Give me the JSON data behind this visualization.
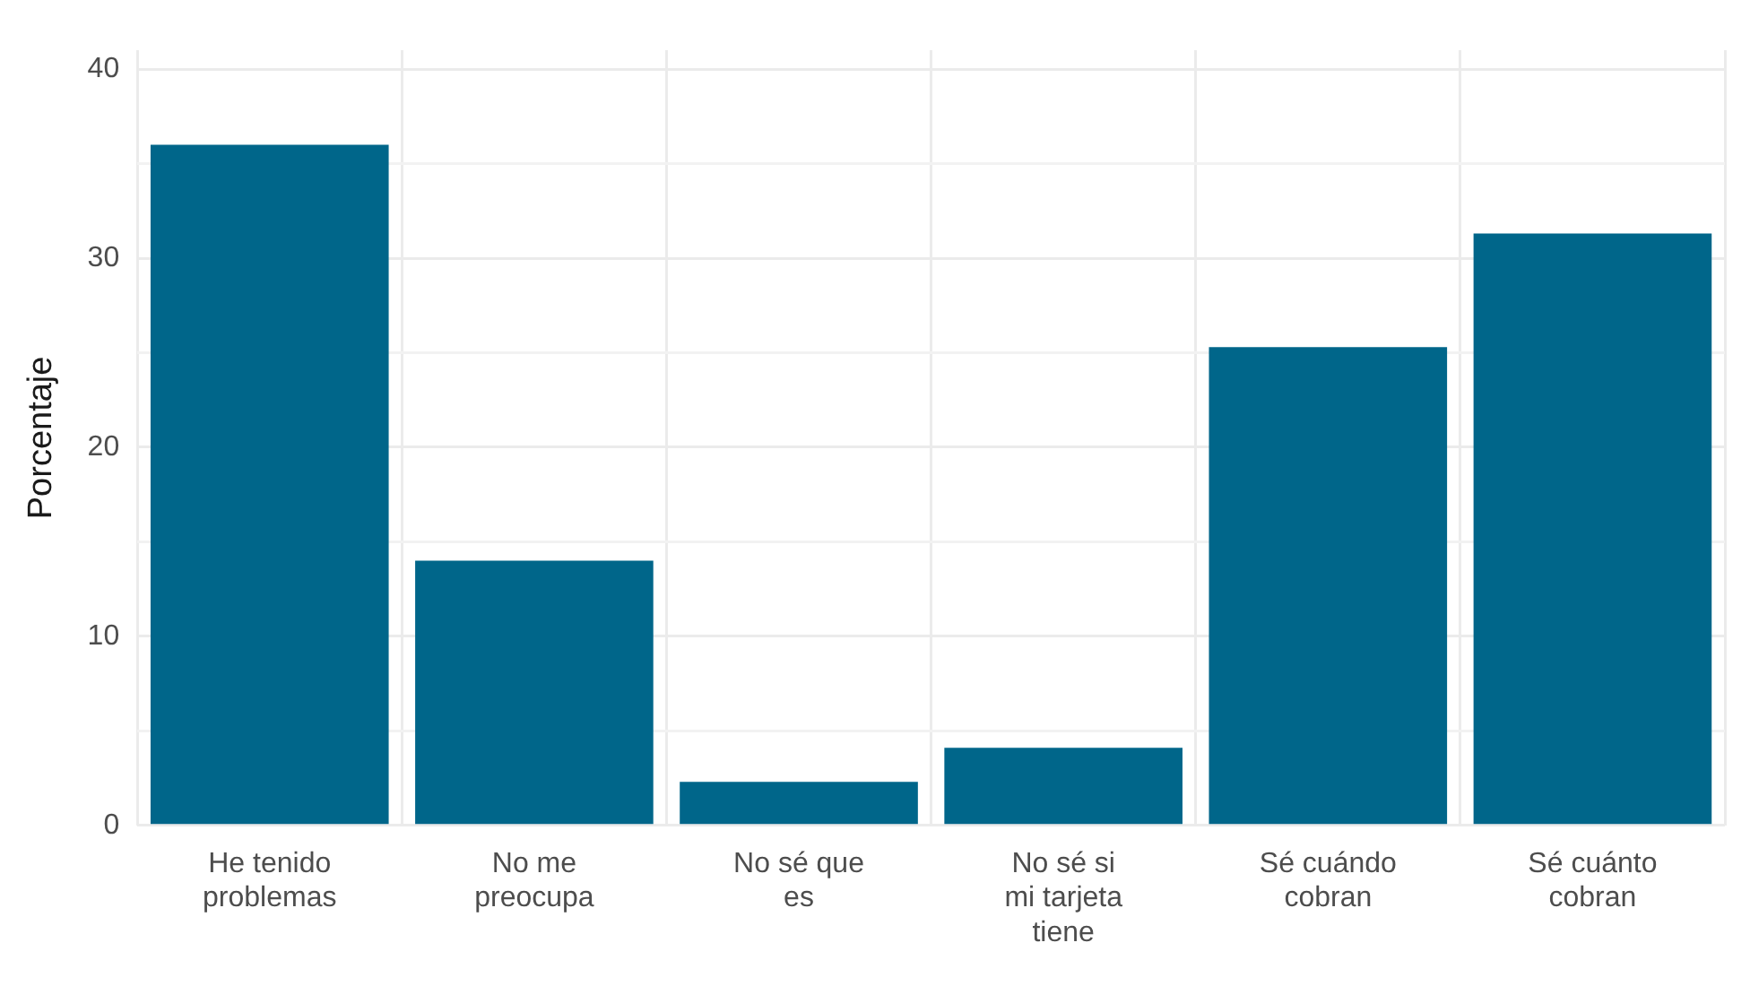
{
  "chart_data": {
    "type": "bar",
    "ylabel": "Porcentaje",
    "categories": [
      "He tenido problemas",
      "No me preocupa",
      "No sé que es",
      "No sé si mi tarjeta tiene",
      "Sé cuándo cobran",
      "Sé cuánto cobran"
    ],
    "values": [
      36,
      14,
      2.3,
      4.1,
      25.3,
      31.3
    ],
    "color": "#00668a",
    "ylim": [
      0,
      41
    ],
    "yticks": [
      0,
      {
        "value": 5,
        "label": null
      },
      10,
      {
        "value": 15,
        "label": null
      },
      20,
      {
        "value": 25,
        "label": null
      },
      30,
      {
        "value": 35,
        "label": null
      },
      40
    ],
    "grid": true,
    "legend": false
  }
}
